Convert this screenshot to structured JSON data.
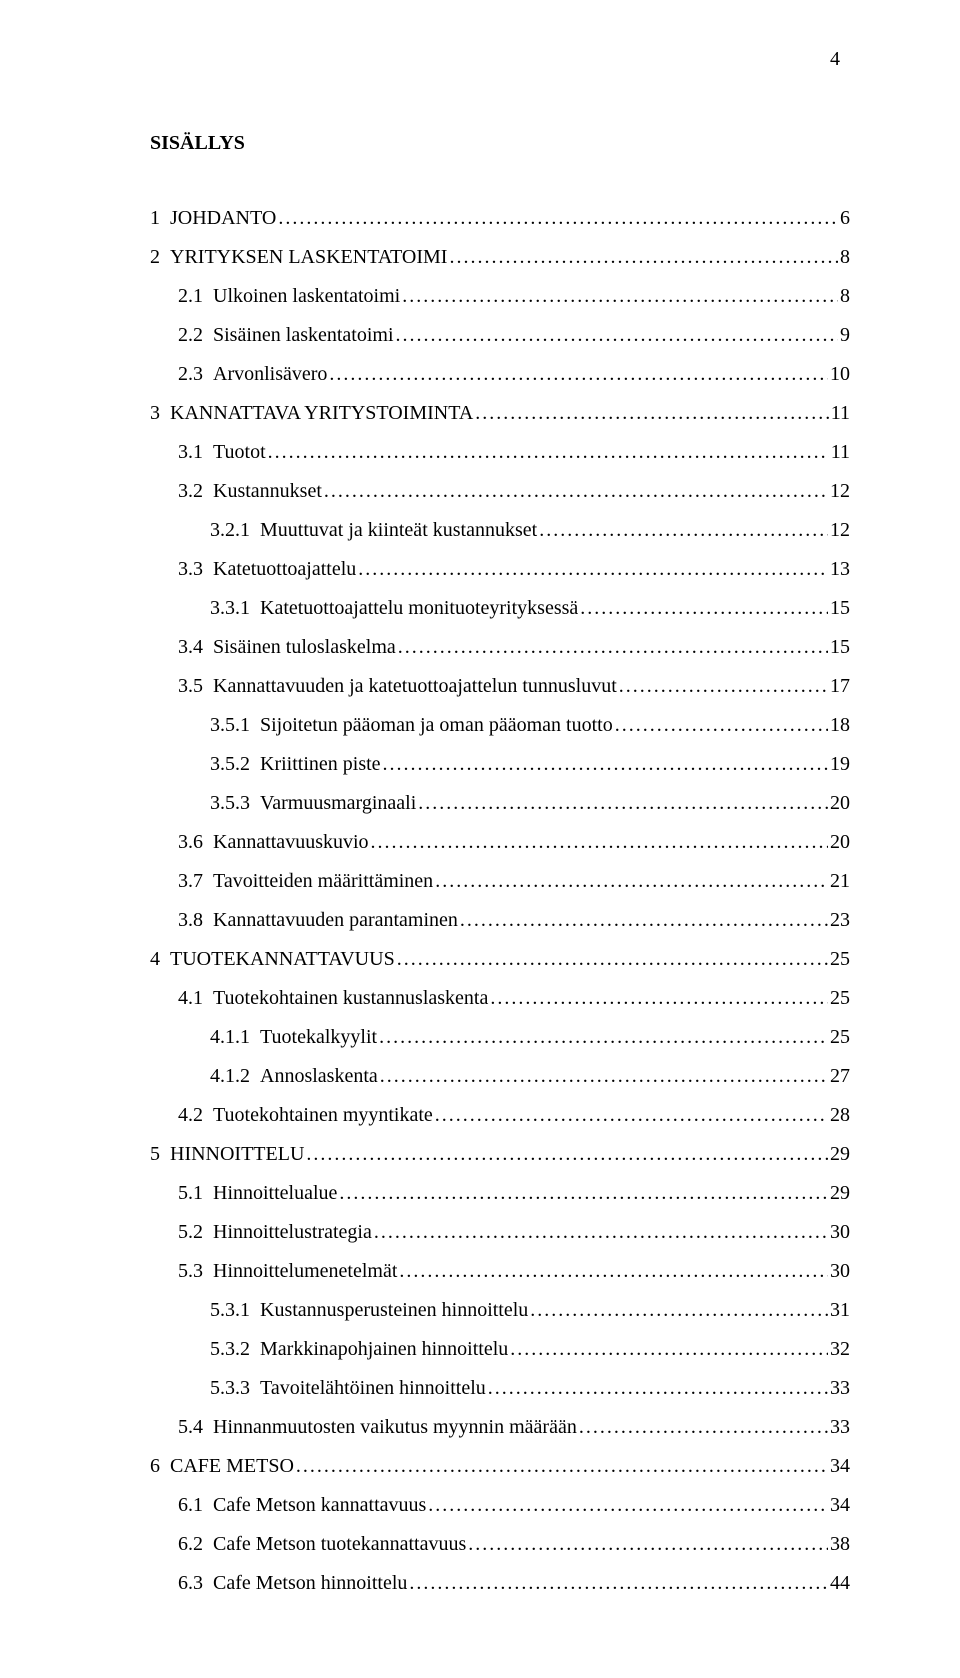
{
  "page_number_top": "4",
  "title": "SISÄLLYS",
  "entries": [
    {
      "level": 1,
      "label": "1 JOHDANTO",
      "page": "6"
    },
    {
      "level": 1,
      "label": "2 YRITYKSEN LASKENTATOIMI",
      "page": "8"
    },
    {
      "level": 2,
      "label": "2.1 Ulkoinen laskentatoimi",
      "page": "8"
    },
    {
      "level": 2,
      "label": "2.2 Sisäinen laskentatoimi",
      "page": "9"
    },
    {
      "level": 2,
      "label": "2.3 Arvonlisävero",
      "page": "10"
    },
    {
      "level": 1,
      "label": "3 KANNATTAVA YRITYSTOIMINTA",
      "page": "11"
    },
    {
      "level": 2,
      "label": "3.1 Tuotot",
      "page": "11"
    },
    {
      "level": 2,
      "label": "3.2 Kustannukset",
      "page": "12"
    },
    {
      "level": 3,
      "label": "3.2.1 Muuttuvat ja kiinteät kustannukset",
      "page": "12"
    },
    {
      "level": 2,
      "label": "3.3 Katetuottoajattelu",
      "page": "13"
    },
    {
      "level": 3,
      "label": "3.3.1 Katetuottoajattelu monituoteyrityksessä",
      "page": "15"
    },
    {
      "level": 2,
      "label": "3.4 Sisäinen tuloslaskelma",
      "page": "15"
    },
    {
      "level": 2,
      "label": "3.5 Kannattavuuden ja katetuottoajattelun tunnusluvut",
      "page": "17"
    },
    {
      "level": 3,
      "label": "3.5.1 Sijoitetun pääoman ja oman pääoman tuotto",
      "page": "18"
    },
    {
      "level": 3,
      "label": "3.5.2 Kriittinen piste",
      "page": "19"
    },
    {
      "level": 3,
      "label": "3.5.3 Varmuusmarginaali",
      "page": "20"
    },
    {
      "level": 2,
      "label": "3.6 Kannattavuuskuvio",
      "page": "20"
    },
    {
      "level": 2,
      "label": "3.7 Tavoitteiden määrittäminen",
      "page": "21"
    },
    {
      "level": 2,
      "label": "3.8 Kannattavuuden parantaminen",
      "page": "23"
    },
    {
      "level": 1,
      "label": "4 TUOTEKANNATTAVUUS",
      "page": "25"
    },
    {
      "level": 2,
      "label": "4.1 Tuotekohtainen kustannuslaskenta",
      "page": "25"
    },
    {
      "level": 3,
      "label": "4.1.1 Tuotekalkyylit",
      "page": "25"
    },
    {
      "level": 3,
      "label": "4.1.2 Annoslaskenta",
      "page": "27"
    },
    {
      "level": 2,
      "label": "4.2 Tuotekohtainen myyntikate",
      "page": "28"
    },
    {
      "level": 1,
      "label": "5 HINNOITTELU",
      "page": "29"
    },
    {
      "level": 2,
      "label": "5.1 Hinnoittelualue",
      "page": "29"
    },
    {
      "level": 2,
      "label": "5.2 Hinnoittelustrategia",
      "page": "30"
    },
    {
      "level": 2,
      "label": "5.3 Hinnoittelumenetelmät",
      "page": "30"
    },
    {
      "level": 3,
      "label": "5.3.1 Kustannusperusteinen hinnoittelu",
      "page": "31"
    },
    {
      "level": 3,
      "label": "5.3.2 Markkinapohjainen hinnoittelu",
      "page": "32"
    },
    {
      "level": 3,
      "label": "5.3.3 Tavoitelähtöinen hinnoittelu",
      "page": "33"
    },
    {
      "level": 2,
      "label": "5.4 Hinnanmuutosten vaikutus myynnin määrään",
      "page": "33"
    },
    {
      "level": 1,
      "label": "6 CAFE METSO",
      "page": "34"
    },
    {
      "level": 2,
      "label": "6.1 Cafe Metson kannattavuus",
      "page": "34"
    },
    {
      "level": 2,
      "label": "6.2 Cafe Metson tuotekannattavuus",
      "page": "38"
    },
    {
      "level": 2,
      "label": "6.3 Cafe Metson hinnoittelu",
      "page": "44"
    }
  ]
}
